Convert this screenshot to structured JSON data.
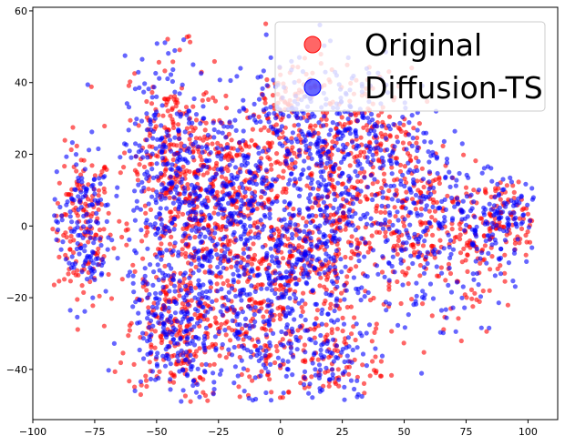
{
  "chart_data": {
    "type": "scatter",
    "title": "",
    "xlabel": "",
    "ylabel": "",
    "xlim": [
      -100,
      112
    ],
    "ylim": [
      -54,
      61
    ],
    "x_ticks": [
      -100,
      -75,
      -50,
      -25,
      0,
      25,
      50,
      75,
      100
    ],
    "y_ticks": [
      -40,
      -20,
      0,
      20,
      40,
      60
    ],
    "x_tick_labels": [
      "−100",
      "−75",
      "−50",
      "−25",
      "0",
      "25",
      "50",
      "75",
      "100"
    ],
    "y_tick_labels": [
      "−40",
      "−20",
      "0",
      "20",
      "40",
      "60"
    ],
    "grid": false,
    "legend_position": "top-right",
    "approx_points_per_series": 2200,
    "series": [
      {
        "name": "Original",
        "color": "#ff0000",
        "alpha": 0.6,
        "marker": "circle"
      },
      {
        "name": "Diffusion-TS",
        "color": "#0000ff",
        "alpha": 0.6,
        "marker": "circle"
      }
    ],
    "clusters": [
      {
        "center": [
          -80,
          0
        ],
        "spread": [
          6,
          11
        ],
        "weight": 0.07
      },
      {
        "center": [
          -45,
          25
        ],
        "spread": [
          9,
          12
        ],
        "weight": 0.07
      },
      {
        "center": [
          -35,
          0
        ],
        "spread": [
          13,
          15
        ],
        "weight": 0.16
      },
      {
        "center": [
          -42,
          -30
        ],
        "spread": [
          10,
          9
        ],
        "weight": 0.09
      },
      {
        "center": [
          -15,
          10
        ],
        "spread": [
          10,
          12
        ],
        "weight": 0.08
      },
      {
        "center": [
          -8,
          -28
        ],
        "spread": [
          10,
          12
        ],
        "weight": 0.08
      },
      {
        "center": [
          5,
          25
        ],
        "spread": [
          10,
          14
        ],
        "weight": 0.08
      },
      {
        "center": [
          22,
          0
        ],
        "spread": [
          9,
          15
        ],
        "weight": 0.12
      },
      {
        "center": [
          35,
          28
        ],
        "spread": [
          9,
          8
        ],
        "weight": 0.05
      },
      {
        "center": [
          55,
          3
        ],
        "spread": [
          10,
          15
        ],
        "weight": 0.1
      },
      {
        "center": [
          78,
          -5
        ],
        "spread": [
          8,
          10
        ],
        "weight": 0.04
      },
      {
        "center": [
          92,
          3
        ],
        "spread": [
          7,
          5
        ],
        "weight": 0.04
      },
      {
        "center": [
          20,
          -38
        ],
        "spread": [
          10,
          6
        ],
        "weight": 0.04
      },
      {
        "center": [
          3,
          -10
        ],
        "spread": [
          7,
          8
        ],
        "weight": 0.04
      }
    ]
  }
}
